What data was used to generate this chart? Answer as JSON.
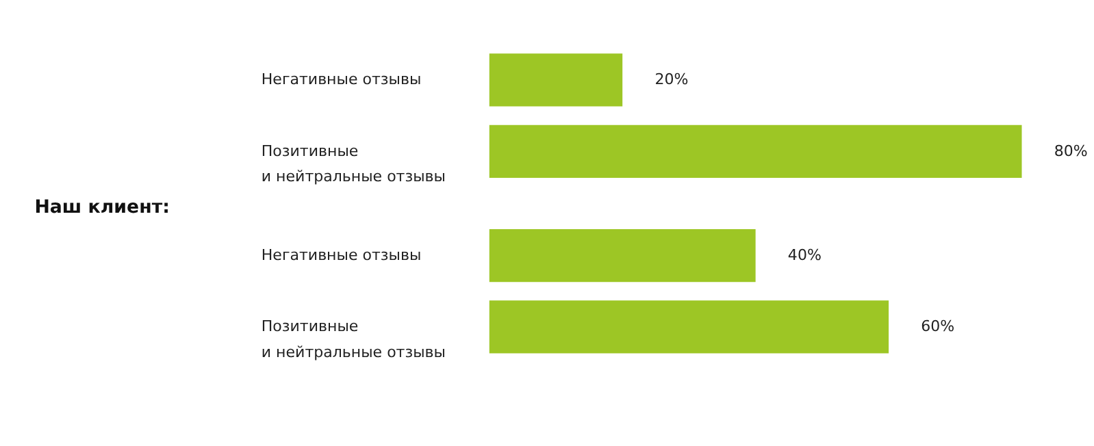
{
  "chart_data": [
    {
      "type": "bar",
      "orientation": "horizontal",
      "categories": [
        "Негативные отзывы",
        "Позитивные\nи нейтральные отзывы"
      ],
      "values": [
        20,
        80
      ],
      "value_labels": [
        "20%",
        "80%"
      ],
      "color": "#9dc625",
      "tick_labels": "y"
    },
    {
      "type": "bar",
      "orientation": "horizontal",
      "title": "Наш клиент:",
      "categories": [
        "Негативные отзывы",
        "Позитивные\nи нейтральные отзывы"
      ],
      "values": [
        40,
        60
      ],
      "value_labels": [
        "40%",
        "60%"
      ],
      "color": "#9dc625",
      "tick_labels": "y"
    }
  ]
}
